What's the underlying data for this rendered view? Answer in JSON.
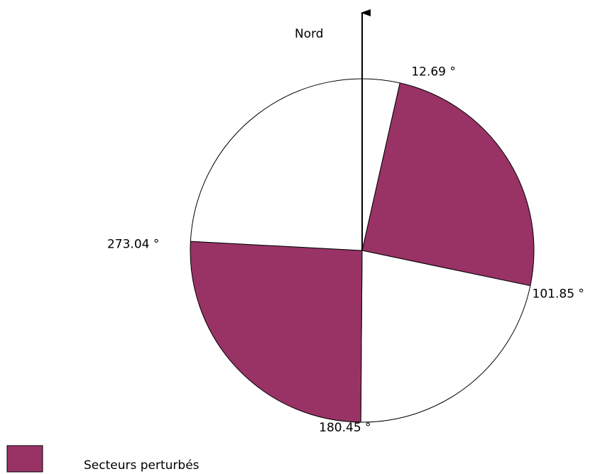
{
  "north_label": "Nord",
  "boundaries": [
    {
      "value": 12.69,
      "label": "12.69 °"
    },
    {
      "value": 101.85,
      "label": "101.85 °"
    },
    {
      "value": 180.45,
      "label": "180.45 °"
    },
    {
      "value": 273.04,
      "label": "273.04 °"
    }
  ],
  "sector_colors": [
    "#993366",
    "#ffffff",
    "#993366",
    "#ffffff"
  ],
  "legend": {
    "label": "Secteurs perturbés",
    "color": "#993366"
  }
}
